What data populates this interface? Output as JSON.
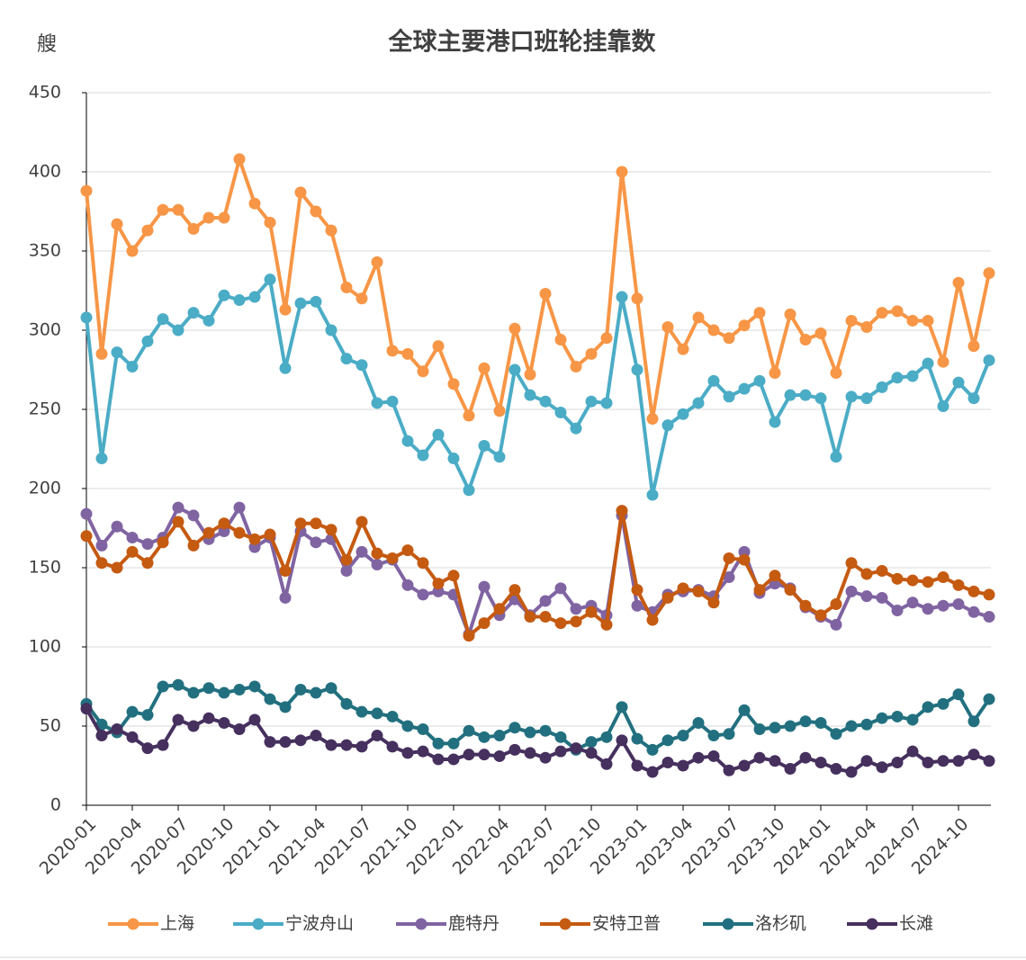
{
  "chart_data": {
    "type": "line",
    "title": "全球主要港口班轮挂靠数",
    "y_label": "艘",
    "categories": [
      "2020-01",
      null,
      null,
      "2020-04",
      null,
      null,
      "2020-07",
      null,
      null,
      "2020-10",
      null,
      null,
      "2021-01",
      null,
      null,
      "2021-04",
      null,
      null,
      "2021-07",
      null,
      null,
      "2021-10",
      null,
      null,
      "2022-01",
      null,
      null,
      "2022-04",
      null,
      null,
      "2022-07",
      null,
      null,
      "2022-10",
      null,
      null,
      "2023-01",
      null,
      null,
      "2023-04",
      null,
      null,
      "2023-07",
      null,
      null,
      "2023-10",
      null,
      null,
      "2024-01",
      null,
      null,
      "2024-04",
      null,
      null,
      "2024-07",
      null,
      null,
      "2024-10",
      null,
      null
    ],
    "ylim": [
      0,
      450
    ],
    "yticks": [
      0,
      50,
      100,
      150,
      200,
      250,
      300,
      350,
      400,
      450
    ],
    "grid": true,
    "legend": "bottom",
    "series": [
      {
        "name": "上海",
        "color": "#f79646",
        "values": [
          388,
          285,
          367,
          350,
          363,
          376,
          376,
          364,
          371,
          371,
          408,
          380,
          368,
          313,
          387,
          375,
          363,
          327,
          320,
          343,
          287,
          285,
          274,
          290,
          266,
          246,
          276,
          249,
          301,
          272,
          323,
          294,
          277,
          285,
          295,
          400,
          320,
          244,
          302,
          288,
          308,
          300,
          295,
          303,
          311,
          273,
          310,
          294,
          298,
          273,
          306,
          302,
          311,
          312,
          306,
          306,
          280,
          330,
          290,
          336
        ]
      },
      {
        "name": "宁波舟山",
        "color": "#4bacc6",
        "values": [
          308,
          219,
          286,
          277,
          293,
          307,
          300,
          311,
          306,
          322,
          319,
          321,
          332,
          276,
          317,
          318,
          300,
          282,
          278,
          254,
          255,
          230,
          221,
          234,
          219,
          199,
          227,
          220,
          275,
          259,
          255,
          248,
          238,
          255,
          254,
          321,
          275,
          196,
          240,
          247,
          254,
          268,
          258,
          263,
          268,
          242,
          259,
          259,
          257,
          220,
          258,
          257,
          264,
          270,
          271,
          279,
          252,
          267,
          257,
          281
        ]
      },
      {
        "name": "鹿特丹",
        "color": "#8064a2",
        "values": [
          184,
          164,
          176,
          169,
          165,
          169,
          188,
          183,
          168,
          173,
          188,
          163,
          169,
          131,
          173,
          166,
          168,
          148,
          160,
          152,
          155,
          139,
          133,
          135,
          133,
          108,
          138,
          120,
          130,
          120,
          129,
          137,
          124,
          126,
          120,
          183,
          126,
          122,
          133,
          135,
          136,
          132,
          144,
          160,
          134,
          140,
          137,
          125,
          119,
          114,
          135,
          132,
          131,
          123,
          128,
          124,
          126,
          127,
          122,
          119
        ]
      },
      {
        "name": "安特卫普",
        "color": "#c55a11",
        "values": [
          170,
          153,
          150,
          160,
          153,
          166,
          179,
          164,
          172,
          178,
          172,
          168,
          171,
          148,
          178,
          178,
          174,
          155,
          179,
          159,
          156,
          161,
          153,
          140,
          145,
          107,
          115,
          124,
          136,
          119,
          119,
          115,
          116,
          122,
          114,
          186,
          136,
          117,
          131,
          137,
          135,
          128,
          156,
          155,
          136,
          145,
          136,
          126,
          120,
          127,
          153,
          146,
          148,
          143,
          142,
          141,
          144,
          139,
          135,
          133
        ]
      },
      {
        "name": "洛杉矶",
        "color": "#22707f",
        "values": [
          64,
          51,
          46,
          59,
          57,
          75,
          76,
          71,
          74,
          71,
          73,
          75,
          67,
          62,
          73,
          71,
          74,
          64,
          59,
          58,
          56,
          50,
          48,
          39,
          39,
          47,
          43,
          44,
          49,
          46,
          47,
          43,
          35,
          40,
          43,
          62,
          42,
          35,
          41,
          44,
          52,
          44,
          45,
          60,
          48,
          49,
          50,
          53,
          52,
          45,
          50,
          51,
          55,
          56,
          54,
          62,
          64,
          70,
          53,
          67
        ]
      },
      {
        "name": "长滩",
        "color": "#46305e",
        "values": [
          61,
          44,
          48,
          43,
          36,
          38,
          54,
          50,
          55,
          52,
          48,
          54,
          40,
          40,
          41,
          44,
          38,
          38,
          37,
          44,
          37,
          33,
          34,
          29,
          29,
          32,
          32,
          31,
          35,
          33,
          30,
          34,
          36,
          33,
          26,
          41,
          25,
          21,
          27,
          25,
          30,
          31,
          22,
          25,
          30,
          28,
          23,
          30,
          27,
          23,
          21,
          28,
          24,
          27,
          34,
          27,
          28,
          28,
          32,
          28
        ]
      }
    ]
  }
}
